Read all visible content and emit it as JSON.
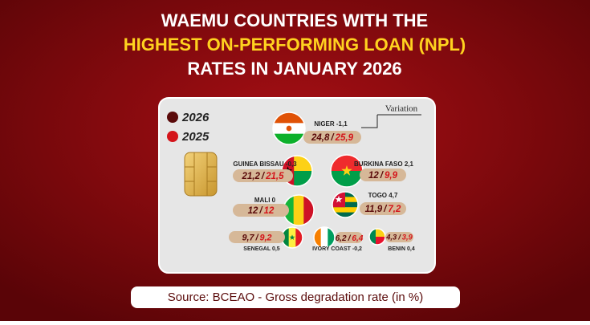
{
  "header": {
    "title_lines": [
      "WAEMU COUNTRIES WITH THE",
      "HIGHEST ON-PERFORMING LOAN (NPL)",
      "RATES IN JANUARY 2026"
    ]
  },
  "legend": {
    "items": [
      "2026",
      "2025"
    ]
  },
  "annotation": "Variation",
  "separator": "/",
  "countries": [
    {
      "name": "NIGER",
      "variation": "-1,1",
      "v2026": "24,8",
      "v2025": "25,9"
    },
    {
      "name": "GUINEA BISSAU",
      "variation": "-0,3",
      "v2026": "21,2",
      "v2025": "21,5"
    },
    {
      "name": "BURKINA FASO",
      "variation": "2,1",
      "v2026": "12",
      "v2025": "9,9"
    },
    {
      "name": "MALI",
      "variation": "0",
      "v2026": "12",
      "v2025": "12"
    },
    {
      "name": "TOGO",
      "variation": "4,7",
      "v2026": "11,9",
      "v2025": "7,2"
    },
    {
      "name": "SENEGAL",
      "variation": "0,5",
      "v2026": "9,7",
      "v2025": "9,2"
    },
    {
      "name": "IVORY COAST",
      "variation": "-0,2",
      "v2026": "6,2",
      "v2025": "6,4"
    },
    {
      "name": "BENIN",
      "variation": "0,4",
      "v2026": "4,3",
      "v2025": "3,9"
    }
  ],
  "source": "Source: BCEAO - Gross degradation rate (in %)"
}
